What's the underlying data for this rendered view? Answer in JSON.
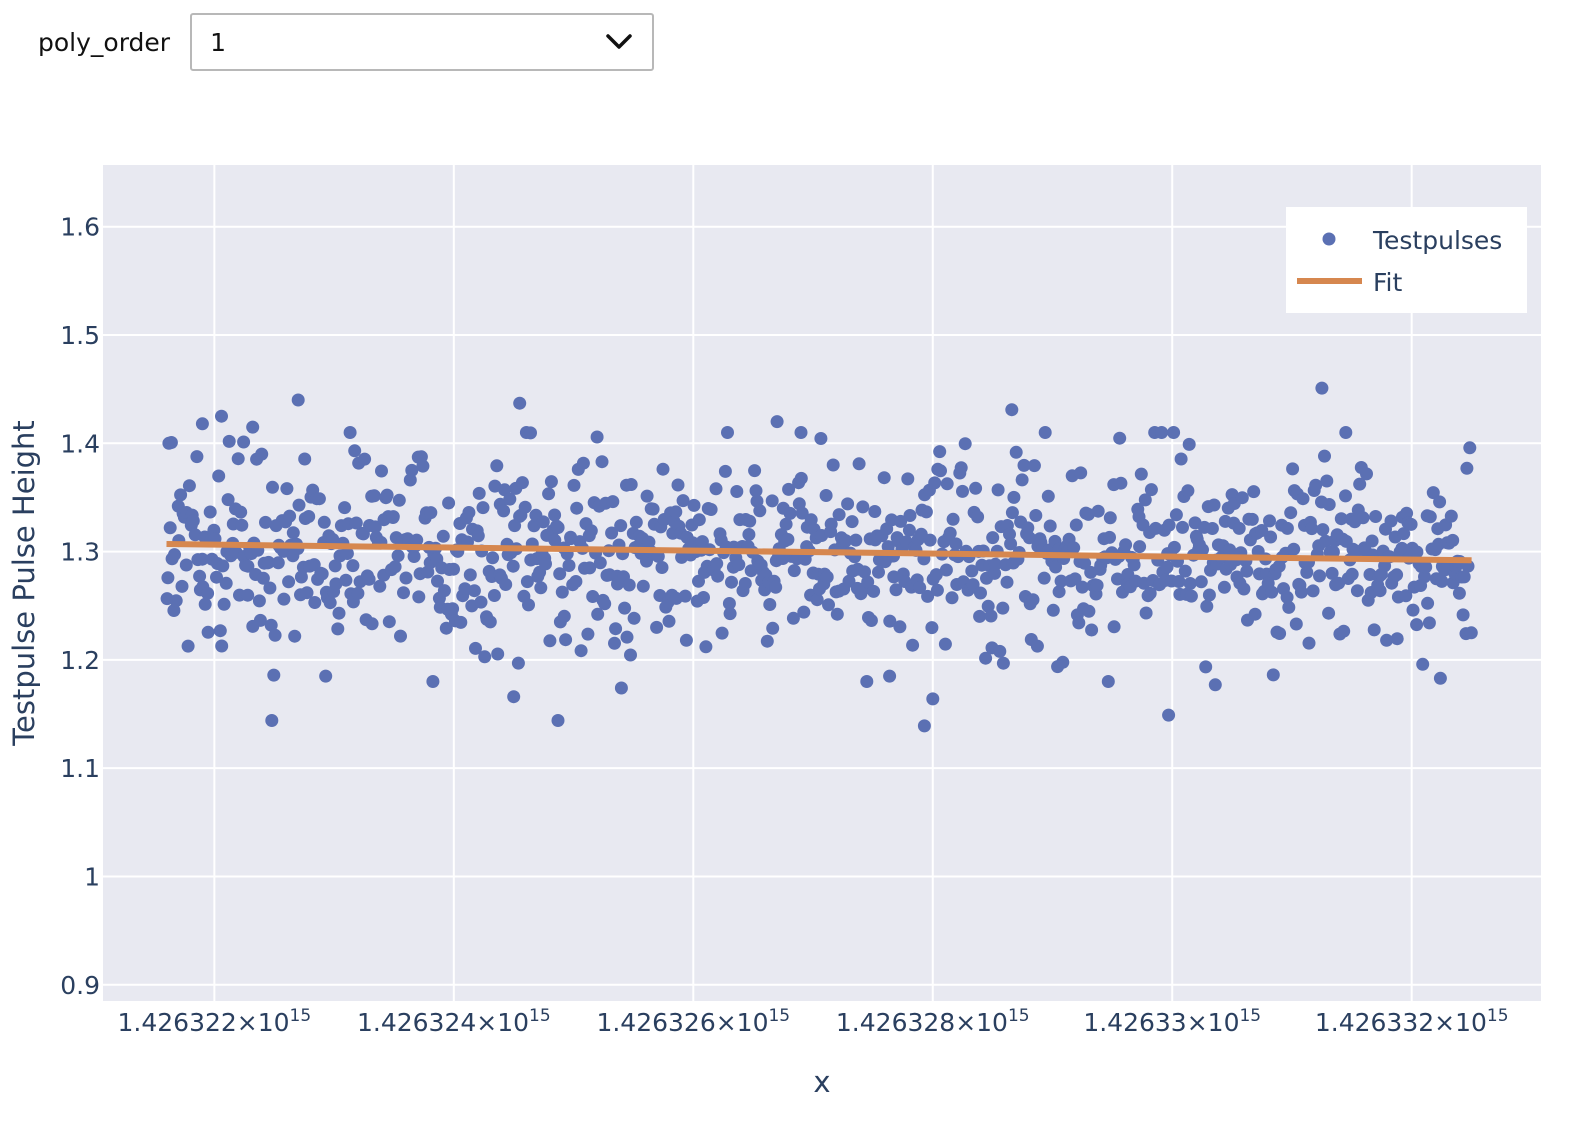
{
  "controls": {
    "poly_order_label": "poly_order",
    "poly_order_value": "1"
  },
  "chart_data": {
    "type": "scatter",
    "xlabel": "x",
    "ylabel": "Testpulse Pulse Height",
    "x_ticks": [
      {
        "value": 1426322000000000.0,
        "mantissa": "1.426322",
        "exp": "15"
      },
      {
        "value": 1426324000000000.0,
        "mantissa": "1.426324",
        "exp": "15"
      },
      {
        "value": 1426326000000000.0,
        "mantissa": "1.426326",
        "exp": "15"
      },
      {
        "value": 1426328000000000.0,
        "mantissa": "1.426328",
        "exp": "15"
      },
      {
        "value": 1426330000000000.0,
        "mantissa": "1.42633",
        "exp": "15"
      },
      {
        "value": 1426332000000000.0,
        "mantissa": "1.426332",
        "exp": "15"
      }
    ],
    "y_ticks": [
      {
        "value": 0.9,
        "label": "0.9"
      },
      {
        "value": 1.0,
        "label": "1"
      },
      {
        "value": 1.1,
        "label": "1.1"
      },
      {
        "value": 1.2,
        "label": "1.2"
      },
      {
        "value": 1.3,
        "label": "1.3"
      },
      {
        "value": 1.4,
        "label": "1.4"
      },
      {
        "value": 1.5,
        "label": "1.5"
      },
      {
        "value": 1.6,
        "label": "1.6"
      }
    ],
    "xlim": [
      1426321070000000.0,
      1426333080000000.0
    ],
    "ylim": [
      0.885,
      1.657
    ],
    "grid": true,
    "legend_position": "top-right",
    "series": [
      {
        "name": "Testpulses",
        "mode": "markers",
        "color": "#5b70b3",
        "x_range": [
          1426321600000000.0,
          1426332500000000.0
        ],
        "n_points": 1000,
        "y_mean": 1.3,
        "y_spread": 0.045,
        "points": [
          {
            "x": 1426321620000000.0,
            "y": 1.4
          },
          {
            "x": 1426321900000000.0,
            "y": 1.418
          },
          {
            "x": 1426322060000000.0,
            "y": 1.425
          },
          {
            "x": 1426322320000000.0,
            "y": 1.415
          },
          {
            "x": 1426322480000000.0,
            "y": 1.144
          },
          {
            "x": 1426322700000000.0,
            "y": 1.44
          },
          {
            "x": 1426322930000000.0,
            "y": 1.185
          },
          {
            "x": 1426324500000000.0,
            "y": 1.166
          },
          {
            "x": 1426324550000000.0,
            "y": 1.437
          },
          {
            "x": 1426324870000000.0,
            "y": 1.144
          },
          {
            "x": 1426325400000000.0,
            "y": 1.174
          },
          {
            "x": 1426326700000000.0,
            "y": 1.42
          },
          {
            "x": 1426326900000000.0,
            "y": 1.41
          },
          {
            "x": 1426327640000000.0,
            "y": 1.185
          },
          {
            "x": 1426327930000000.0,
            "y": 1.139
          },
          {
            "x": 1426328000000000.0,
            "y": 1.164
          },
          {
            "x": 1426328660000000.0,
            "y": 1.431
          },
          {
            "x": 1426329970000000.0,
            "y": 1.149
          },
          {
            "x": 1426330360000000.0,
            "y": 1.177
          },
          {
            "x": 1426331250000000.0,
            "y": 1.451
          },
          {
            "x": 1426331450000000.0,
            "y": 1.41
          },
          {
            "x": 1426332240000000.0,
            "y": 1.183
          }
        ]
      },
      {
        "name": "Fit",
        "mode": "line",
        "color": "#d6874f",
        "points": [
          {
            "x": 1426321600000000.0,
            "y": 1.307
          },
          {
            "x": 1426332500000000.0,
            "y": 1.292
          }
        ]
      }
    ]
  }
}
